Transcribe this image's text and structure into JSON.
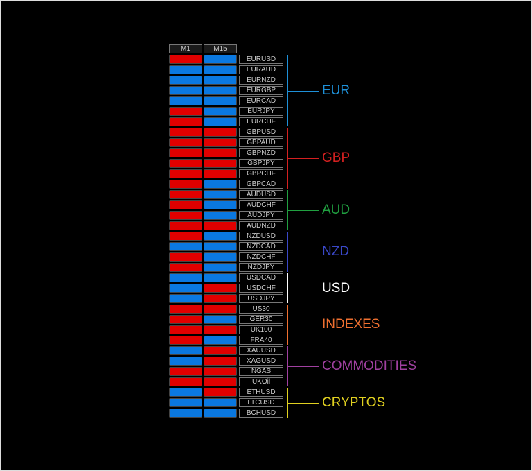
{
  "headers": [
    "M1",
    "M15"
  ],
  "groups": [
    {
      "label": "EUR",
      "color": "#1e90d8",
      "rows": [
        {
          "symbol": "EURUSD",
          "cells": [
            "#e00000",
            "#0a78e0"
          ]
        },
        {
          "symbol": "EURAUD",
          "cells": [
            "#0a78e0",
            "#0a78e0"
          ]
        },
        {
          "symbol": "EURNZD",
          "cells": [
            "#0a78e0",
            "#0a78e0"
          ]
        },
        {
          "symbol": "EURGBP",
          "cells": [
            "#0a78e0",
            "#0a78e0"
          ]
        },
        {
          "symbol": "EURCAD",
          "cells": [
            "#0a78e0",
            "#0a78e0"
          ]
        },
        {
          "symbol": "EURJPY",
          "cells": [
            "#e00000",
            "#0a78e0"
          ]
        },
        {
          "symbol": "EURCHF",
          "cells": [
            "#e00000",
            "#0a78e0"
          ]
        }
      ]
    },
    {
      "label": "GBP",
      "color": "#d42020",
      "rows": [
        {
          "symbol": "GBPUSD",
          "cells": [
            "#e00000",
            "#e00000"
          ]
        },
        {
          "symbol": "GBPAUD",
          "cells": [
            "#e00000",
            "#e00000"
          ]
        },
        {
          "symbol": "GBPNZD",
          "cells": [
            "#e00000",
            "#e00000"
          ]
        },
        {
          "symbol": "GBPJPY",
          "cells": [
            "#e00000",
            "#e00000"
          ]
        },
        {
          "symbol": "GBPCHF",
          "cells": [
            "#e00000",
            "#e00000"
          ]
        },
        {
          "symbol": "GBPCAD",
          "cells": [
            "#e00000",
            "#0a78e0"
          ]
        }
      ]
    },
    {
      "label": "AUD",
      "color": "#20a040",
      "rows": [
        {
          "symbol": "AUDUSD",
          "cells": [
            "#e00000",
            "#0a78e0"
          ]
        },
        {
          "symbol": "AUDCHF",
          "cells": [
            "#e00000",
            "#0a78e0"
          ]
        },
        {
          "symbol": "AUDJPY",
          "cells": [
            "#e00000",
            "#0a78e0"
          ]
        },
        {
          "symbol": "AUDNZD",
          "cells": [
            "#e00000",
            "#e00000"
          ]
        }
      ]
    },
    {
      "label": "NZD",
      "color": "#3a48c8",
      "rows": [
        {
          "symbol": "NZDUSD",
          "cells": [
            "#e00000",
            "#0a78e0"
          ]
        },
        {
          "symbol": "NZDCAD",
          "cells": [
            "#0a78e0",
            "#0a78e0"
          ]
        },
        {
          "symbol": "NZDCHF",
          "cells": [
            "#e00000",
            "#0a78e0"
          ]
        },
        {
          "symbol": "NZDJPY",
          "cells": [
            "#e00000",
            "#0a78e0"
          ]
        }
      ]
    },
    {
      "label": "USD",
      "color": "#ffffff",
      "rows": [
        {
          "symbol": "USDCAD",
          "cells": [
            "#0a78e0",
            "#0a78e0"
          ]
        },
        {
          "symbol": "USDCHF",
          "cells": [
            "#0a78e0",
            "#e00000"
          ]
        },
        {
          "symbol": "USDJPY",
          "cells": [
            "#0a78e0",
            "#e00000"
          ]
        }
      ]
    },
    {
      "label": "INDEXES",
      "color": "#f07030",
      "rows": [
        {
          "symbol": "US30",
          "cells": [
            "#e00000",
            "#e00000"
          ]
        },
        {
          "symbol": "GER30",
          "cells": [
            "#e00000",
            "#0a78e0"
          ]
        },
        {
          "symbol": "UK100",
          "cells": [
            "#e00000",
            "#e00000"
          ]
        },
        {
          "symbol": "FRA40",
          "cells": [
            "#e00000",
            "#0a78e0"
          ]
        }
      ]
    },
    {
      "label": "COMMODITIES",
      "color": "#a040a0",
      "rows": [
        {
          "symbol": "XAUUSD",
          "cells": [
            "#0a78e0",
            "#e00000"
          ]
        },
        {
          "symbol": "XAGUSD",
          "cells": [
            "#0a78e0",
            "#e00000"
          ]
        },
        {
          "symbol": "NGAS",
          "cells": [
            "#e00000",
            "#e00000"
          ]
        },
        {
          "symbol": "UKOil",
          "cells": [
            "#e00000",
            "#e00000"
          ]
        }
      ]
    },
    {
      "label": "CRYPTOS",
      "color": "#e0d020",
      "rows": [
        {
          "symbol": "ETHUSD",
          "cells": [
            "#0a78e0",
            "#e00000"
          ]
        },
        {
          "symbol": "LTCUSD",
          "cells": [
            "#0a78e0",
            "#0a78e0"
          ]
        },
        {
          "symbol": "BCHUSD",
          "cells": [
            "#0a78e0",
            "#0a78e0"
          ]
        }
      ]
    }
  ]
}
